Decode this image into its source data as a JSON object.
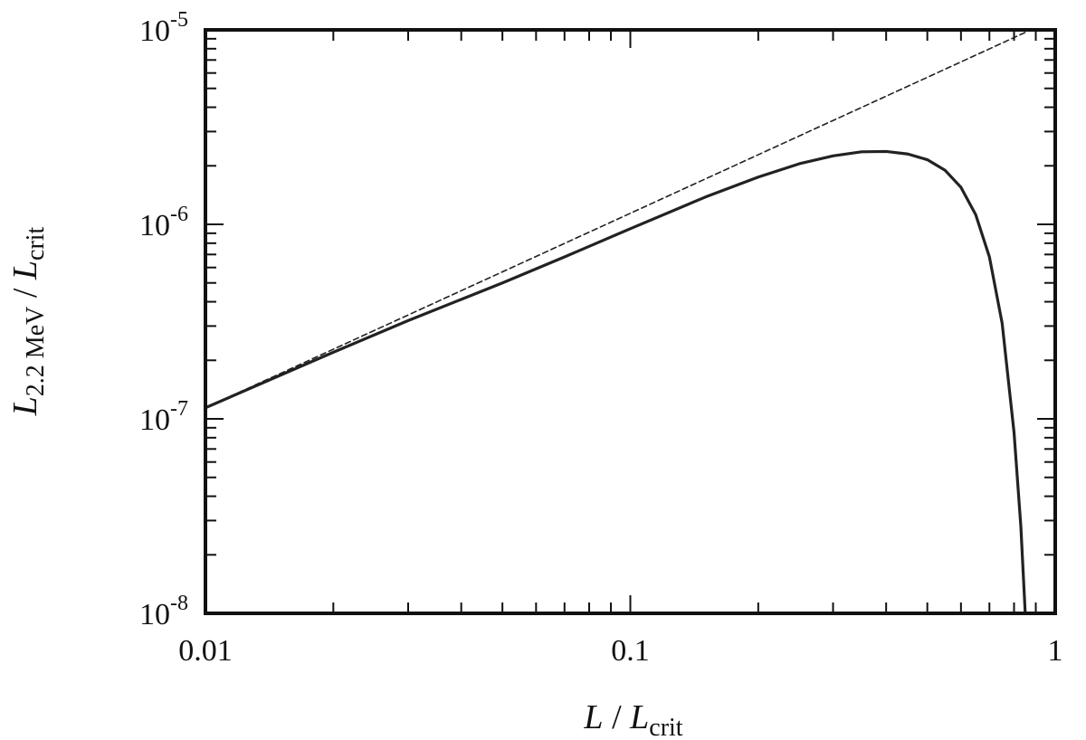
{
  "chart_data": {
    "type": "line",
    "x_scale": "log",
    "y_scale": "log",
    "xlim": [
      0.01,
      1
    ],
    "ylim": [
      1e-08,
      1e-05
    ],
    "grid": false,
    "x_ticks": [
      {
        "value": 0.01,
        "label": "0.01"
      },
      {
        "value": 0.1,
        "label": "0.1"
      },
      {
        "value": 1,
        "label": "1"
      }
    ],
    "y_ticks": [
      {
        "value": 1e-08,
        "base": "10",
        "exp": "-8"
      },
      {
        "value": 1e-07,
        "base": "10",
        "exp": "-7"
      },
      {
        "value": 1e-06,
        "base": "10",
        "exp": "-6"
      },
      {
        "value": 1e-05,
        "base": "10",
        "exp": "-5"
      }
    ],
    "xlabel": {
      "main": "L",
      "sep": " / ",
      "main2": "L",
      "sub2": "crit"
    },
    "ylabel": {
      "main": "L",
      "sub": "2.2 MeV",
      "sep": " / ",
      "main2": "L",
      "sub2": "crit"
    },
    "series": [
      {
        "style": "dashed",
        "x": [
          0.01,
          0.02,
          0.05,
          0.1,
          0.2,
          0.5,
          0.85
        ],
        "y": [
          1.14e-07,
          2.28e-07,
          5.7e-07,
          1.14e-06,
          2.28e-06,
          5.7e-06,
          9.7e-06
        ]
      },
      {
        "style": "solid",
        "x": [
          0.01,
          0.02,
          0.03,
          0.05,
          0.07,
          0.1,
          0.15,
          0.2,
          0.25,
          0.3,
          0.35,
          0.4,
          0.45,
          0.5,
          0.55,
          0.6,
          0.65,
          0.7,
          0.75,
          0.8,
          0.83,
          0.85
        ],
        "y": [
          1.14e-07,
          2.2e-07,
          3.2e-07,
          5e-07,
          6.8e-07,
          9.5e-07,
          1.38e-06,
          1.75e-06,
          2.05e-06,
          2.25e-06,
          2.36e-06,
          2.37e-06,
          2.3e-06,
          2.15e-06,
          1.9e-06,
          1.55e-06,
          1.12e-06,
          6.8e-07,
          3.1e-07,
          8.5e-08,
          2.8e-08,
          1e-08
        ]
      }
    ]
  }
}
